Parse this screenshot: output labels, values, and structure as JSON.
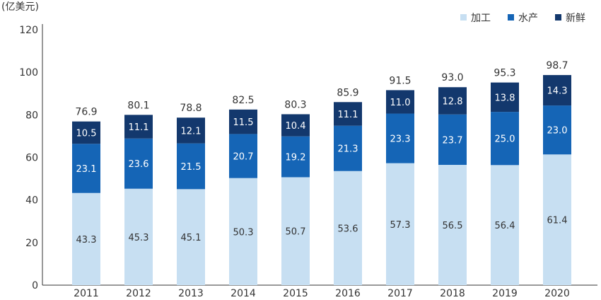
{
  "chart_data": {
    "type": "bar",
    "stacked": true,
    "unit_label": "(亿美元)",
    "categories": [
      "2011",
      "2012",
      "2013",
      "2014",
      "2015",
      "2016",
      "2017",
      "2018",
      "2019",
      "2020"
    ],
    "series": [
      {
        "name": "加工",
        "color": "#c7dff2",
        "label_color": "#333333",
        "values": [
          43.3,
          45.3,
          45.1,
          50.3,
          50.7,
          53.6,
          57.3,
          56.5,
          56.4,
          61.4
        ]
      },
      {
        "name": "水产",
        "color": "#1565b6",
        "label_color": "#ffffff",
        "values": [
          23.1,
          23.6,
          21.5,
          20.7,
          19.2,
          21.3,
          23.3,
          23.7,
          25.0,
          23.0
        ]
      },
      {
        "name": "新鲜",
        "color": "#13386d",
        "label_color": "#ffffff",
        "values": [
          10.5,
          11.1,
          12.1,
          11.5,
          10.4,
          11.1,
          11.0,
          12.8,
          13.8,
          14.3
        ]
      }
    ],
    "totals": [
      "76.9",
      "80.1",
      "78.8",
      "82.5",
      "80.3",
      "85.9",
      "91.5",
      "93.0",
      "95.3",
      "98.7"
    ],
    "highlight_total_index": 9,
    "highlight_color": "#1f6fc1",
    "ylim": [
      0,
      120
    ],
    "yticks": [
      0,
      20,
      40,
      60,
      80,
      100,
      120
    ],
    "legend_position": "top-right",
    "grid": false
  }
}
